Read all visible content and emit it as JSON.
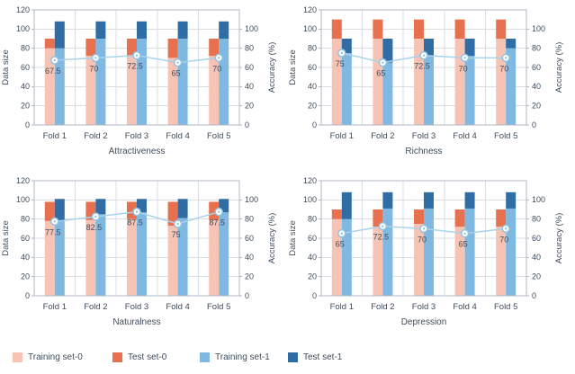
{
  "page": {
    "background": "#ffffff",
    "text_color": "#3f4c5c"
  },
  "colors": {
    "training_set0": "#f6c3b4",
    "test_set0": "#e7714e",
    "training_set1": "#7fb8e1",
    "test_set1": "#2f6da4",
    "accuracy_line": "#a9d3ea",
    "marker_ring": "#8fc3e4",
    "marker_fill": "#ffffff",
    "grid": "#d9dee4",
    "plot_border": "#b0bac4",
    "text": "#3f4c5c"
  },
  "legend": [
    {
      "label": "Training set-0",
      "color": "#f6c3b4"
    },
    {
      "label": "Test set-0",
      "color": "#e7714e"
    },
    {
      "label": "Training set-1",
      "color": "#7fb8e1"
    },
    {
      "label": "Test set-1",
      "color": "#2f6da4"
    }
  ],
  "chart_data": [
    {
      "type": "bar",
      "subtype": "stacked-bars-with-accuracy-line",
      "title": "Attractiveness",
      "categories": [
        "Fold 1",
        "Fold 2",
        "Fold 3",
        "Fold 4",
        "Fold 5"
      ],
      "ylabel_left": "Data size",
      "ylabel_right": "Accuracy (%)",
      "ylim": [
        0,
        120
      ],
      "left_ticks": [
        0,
        20,
        40,
        60,
        80,
        100,
        120
      ],
      "right_ticks": [
        0,
        20,
        40,
        60,
        80,
        100
      ],
      "grid": true,
      "series": [
        {
          "name": "Training set-0",
          "stack": "set0",
          "color": "#f6c3b4",
          "values": [
            80,
            72,
            72,
            70,
            72
          ]
        },
        {
          "name": "Test set-0",
          "stack": "set0",
          "color": "#e7714e",
          "values": [
            10,
            18,
            18,
            20,
            18
          ]
        },
        {
          "name": "Training set-1",
          "stack": "set1",
          "color": "#7fb8e1",
          "values": [
            80,
            90,
            90,
            90,
            90
          ]
        },
        {
          "name": "Test set-1",
          "stack": "set1",
          "color": "#2f6da4",
          "values": [
            28,
            18,
            18,
            18,
            18
          ]
        }
      ],
      "line": {
        "name": "Accuracy (%)",
        "values": [
          67.5,
          70,
          72.5,
          65,
          70
        ]
      }
    },
    {
      "type": "bar",
      "subtype": "stacked-bars-with-accuracy-line",
      "title": "Richness",
      "categories": [
        "Fold 1",
        "Fold 2",
        "Fold 3",
        "Fold 4",
        "Fold 5"
      ],
      "ylabel_left": "Data size",
      "ylabel_right": "Accuracy (%)",
      "ylim": [
        0,
        120
      ],
      "left_ticks": [
        0,
        20,
        40,
        60,
        80,
        100,
        120
      ],
      "right_ticks": [
        0,
        20,
        40,
        60,
        80,
        100
      ],
      "grid": true,
      "series": [
        {
          "name": "Training set-0",
          "stack": "set0",
          "color": "#f6c3b4",
          "values": [
            90,
            90,
            90,
            90,
            90
          ]
        },
        {
          "name": "Test set-0",
          "stack": "set0",
          "color": "#e7714e",
          "values": [
            20,
            20,
            20,
            20,
            20
          ]
        },
        {
          "name": "Training set-1",
          "stack": "set1",
          "color": "#7fb8e1",
          "values": [
            75,
            65,
            72,
            72,
            80
          ]
        },
        {
          "name": "Test set-1",
          "stack": "set1",
          "color": "#2f6da4",
          "values": [
            15,
            25,
            18,
            18,
            10
          ]
        }
      ],
      "line": {
        "name": "Accuracy (%)",
        "values": [
          75,
          65,
          72.5,
          70,
          70
        ]
      }
    },
    {
      "type": "bar",
      "subtype": "stacked-bars-with-accuracy-line",
      "title": "Naturalness",
      "categories": [
        "Fold 1",
        "Fold 2",
        "Fold 3",
        "Fold 4",
        "Fold 5"
      ],
      "ylabel_left": "Data size",
      "ylabel_right": "Accuracy (%)",
      "ylim": [
        0,
        120
      ],
      "left_ticks": [
        0,
        20,
        40,
        60,
        80,
        100,
        120
      ],
      "right_ticks": [
        0,
        20,
        40,
        60,
        80,
        100
      ],
      "grid": true,
      "series": [
        {
          "name": "Training set-0",
          "stack": "set0",
          "color": "#f6c3b4",
          "values": [
            78,
            79,
            80,
            73,
            79
          ]
        },
        {
          "name": "Test set-0",
          "stack": "set0",
          "color": "#e7714e",
          "values": [
            20,
            19,
            18,
            25,
            19
          ]
        },
        {
          "name": "Training set-1",
          "stack": "set1",
          "color": "#7fb8e1",
          "values": [
            78,
            85,
            87,
            81,
            87
          ]
        },
        {
          "name": "Test set-1",
          "stack": "set1",
          "color": "#2f6da4",
          "values": [
            23,
            16,
            14,
            20,
            14
          ]
        }
      ],
      "line": {
        "name": "Accuracy (%)",
        "values": [
          77.5,
          82.5,
          87.5,
          75,
          87.5
        ]
      }
    },
    {
      "type": "bar",
      "subtype": "stacked-bars-with-accuracy-line",
      "title": "Depression",
      "categories": [
        "Fold 1",
        "Fold 2",
        "Fold 3",
        "Fold 4",
        "Fold 5"
      ],
      "ylabel_left": "Data size",
      "ylabel_right": "Accuracy (%)",
      "ylim": [
        0,
        120
      ],
      "left_ticks": [
        0,
        20,
        40,
        60,
        80,
        100,
        120
      ],
      "right_ticks": [
        0,
        20,
        40,
        60,
        80,
        100
      ],
      "grid": true,
      "series": [
        {
          "name": "Training set-0",
          "stack": "set0",
          "color": "#f6c3b4",
          "values": [
            80,
            72,
            75,
            72,
            72
          ]
        },
        {
          "name": "Test set-0",
          "stack": "set0",
          "color": "#e7714e",
          "values": [
            10,
            18,
            15,
            18,
            18
          ]
        },
        {
          "name": "Training set-1",
          "stack": "set1",
          "color": "#7fb8e1",
          "values": [
            80,
            91,
            91,
            91,
            91
          ]
        },
        {
          "name": "Test set-1",
          "stack": "set1",
          "color": "#2f6da4",
          "values": [
            28,
            17,
            17,
            17,
            17
          ]
        }
      ],
      "line": {
        "name": "Accuracy (%)",
        "values": [
          65,
          72.5,
          70,
          65,
          70
        ]
      }
    }
  ]
}
